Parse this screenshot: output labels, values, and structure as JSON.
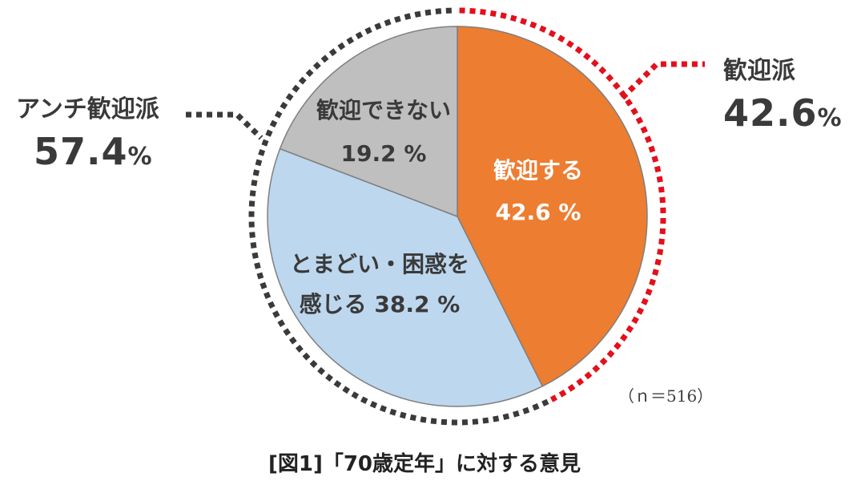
{
  "chart_data": {
    "type": "pie",
    "title": "[図1]「70歳定年」に対する意見",
    "note": "（ｎ＝516）",
    "slices": [
      {
        "label_line1": "歓迎する",
        "label_line2": "42.6 %",
        "value": 42.6,
        "color": "#ED7D31"
      },
      {
        "label_line1": "とまどい・困惑を",
        "label_line2": "感じる 38.2 %",
        "value": 38.2,
        "color": "#BDD7EE"
      },
      {
        "label_line1": "歓迎できない",
        "label_line2": "19.2 %",
        "value": 19.2,
        "color": "#BFBFBF"
      }
    ],
    "groups": [
      {
        "name": "歓迎派",
        "value_num": "42.6",
        "unit": "%",
        "value": 42.6,
        "color": "#E3101B"
      },
      {
        "name": "アンチ歓迎派",
        "value_num": "57.4",
        "unit": "%",
        "value": 57.4,
        "color": "#3A3A3A"
      }
    ]
  }
}
